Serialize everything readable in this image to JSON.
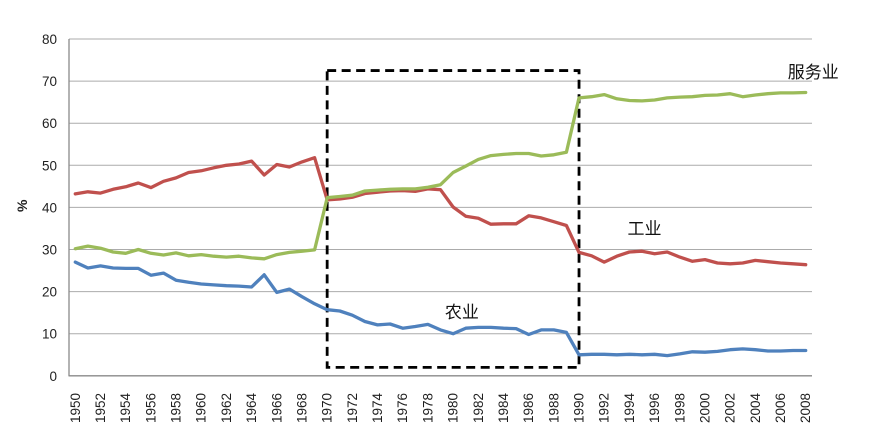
{
  "chart_data": {
    "type": "line",
    "title": "",
    "xlabel": "",
    "ylabel": "%",
    "ylim": [
      0,
      80
    ],
    "y_ticks": [
      0,
      10,
      20,
      30,
      40,
      50,
      60,
      70,
      80
    ],
    "x_ticks": [
      1950,
      1952,
      1954,
      1956,
      1958,
      1960,
      1962,
      1964,
      1966,
      1968,
      1970,
      1972,
      1974,
      1976,
      1978,
      1980,
      1982,
      1984,
      1986,
      1988,
      1990,
      1992,
      1994,
      1996,
      1998,
      2000,
      2002,
      2004,
      2006,
      2008
    ],
    "grid": "horizontal",
    "legend_position": "inline-labels",
    "x": [
      1950,
      1951,
      1952,
      1953,
      1954,
      1955,
      1956,
      1957,
      1958,
      1959,
      1960,
      1961,
      1962,
      1963,
      1964,
      1965,
      1966,
      1967,
      1968,
      1969,
      1970,
      1971,
      1972,
      1973,
      1974,
      1975,
      1976,
      1977,
      1978,
      1979,
      1980,
      1981,
      1982,
      1983,
      1984,
      1985,
      1986,
      1987,
      1988,
      1989,
      1990,
      1991,
      1992,
      1993,
      1994,
      1995,
      1996,
      1997,
      1998,
      1999,
      2000,
      2001,
      2002,
      2003,
      2004,
      2005,
      2006,
      2007,
      2008
    ],
    "series": [
      {
        "id": "agriculture",
        "name": "农业",
        "color": "#4F81BD",
        "label_anchor": {
          "x": 1980.7,
          "y": 15.2
        },
        "values": [
          27.0,
          25.6,
          26.1,
          25.6,
          25.5,
          25.5,
          23.9,
          24.4,
          22.7,
          22.2,
          21.8,
          21.6,
          21.4,
          21.3,
          21.1,
          24.0,
          19.8,
          20.6,
          18.8,
          17.1,
          15.7,
          15.4,
          14.4,
          12.9,
          12.1,
          12.3,
          11.3,
          11.7,
          12.2,
          10.9,
          10.0,
          11.3,
          11.5,
          11.5,
          11.3,
          11.2,
          9.8,
          10.9,
          10.9,
          10.3,
          5.0,
          5.1,
          5.1,
          5.0,
          5.1,
          5.0,
          5.1,
          4.8,
          5.2,
          5.7,
          5.6,
          5.8,
          6.2,
          6.4,
          6.2,
          5.9,
          5.9,
          6.0,
          6.0
        ]
      },
      {
        "id": "industry",
        "name": "工业",
        "color": "#C0504D",
        "label_anchor": {
          "x": 1995.2,
          "y": 35.0
        },
        "values": [
          43.2,
          43.7,
          43.4,
          44.3,
          44.9,
          45.8,
          44.7,
          46.2,
          47.0,
          48.3,
          48.7,
          49.4,
          50.0,
          50.3,
          51.0,
          47.7,
          50.2,
          49.6,
          50.8,
          51.8,
          41.8,
          42.0,
          42.4,
          43.3,
          43.6,
          43.9,
          44.0,
          43.8,
          44.4,
          44.2,
          40.1,
          37.9,
          37.4,
          36.0,
          36.1,
          36.1,
          38.0,
          37.5,
          36.6,
          35.7,
          29.3,
          28.5,
          27.0,
          28.4,
          29.4,
          29.6,
          29.0,
          29.4,
          28.2,
          27.2,
          27.6,
          26.8,
          26.6,
          26.8,
          27.4,
          27.1,
          26.8,
          26.6,
          26.4
        ]
      },
      {
        "id": "services",
        "name": "服务业",
        "color": "#9BBB59",
        "label_anchor": {
          "x": 2008.6,
          "y": 72.2
        },
        "values": [
          30.2,
          30.8,
          30.3,
          29.4,
          29.1,
          30.0,
          29.1,
          28.7,
          29.2,
          28.5,
          28.8,
          28.4,
          28.2,
          28.4,
          28.0,
          27.8,
          28.8,
          29.3,
          29.6,
          29.9,
          42.3,
          42.6,
          42.9,
          43.9,
          44.1,
          44.3,
          44.4,
          44.4,
          44.8,
          45.4,
          48.3,
          49.8,
          51.4,
          52.3,
          52.6,
          52.8,
          52.8,
          52.2,
          52.5,
          53.1,
          66.0,
          66.3,
          66.8,
          65.8,
          65.4,
          65.3,
          65.5,
          66.0,
          66.2,
          66.3,
          66.6,
          66.7,
          67.0,
          66.3,
          66.7,
          67.0,
          67.2,
          67.2,
          67.3
        ]
      }
    ],
    "annotations": {
      "dashed_box": {
        "description": "black dashed rectangle highlighting period",
        "x_start": 1970,
        "x_end": 1990,
        "y_bottom": 2.0,
        "y_top": 72.5
      }
    }
  }
}
